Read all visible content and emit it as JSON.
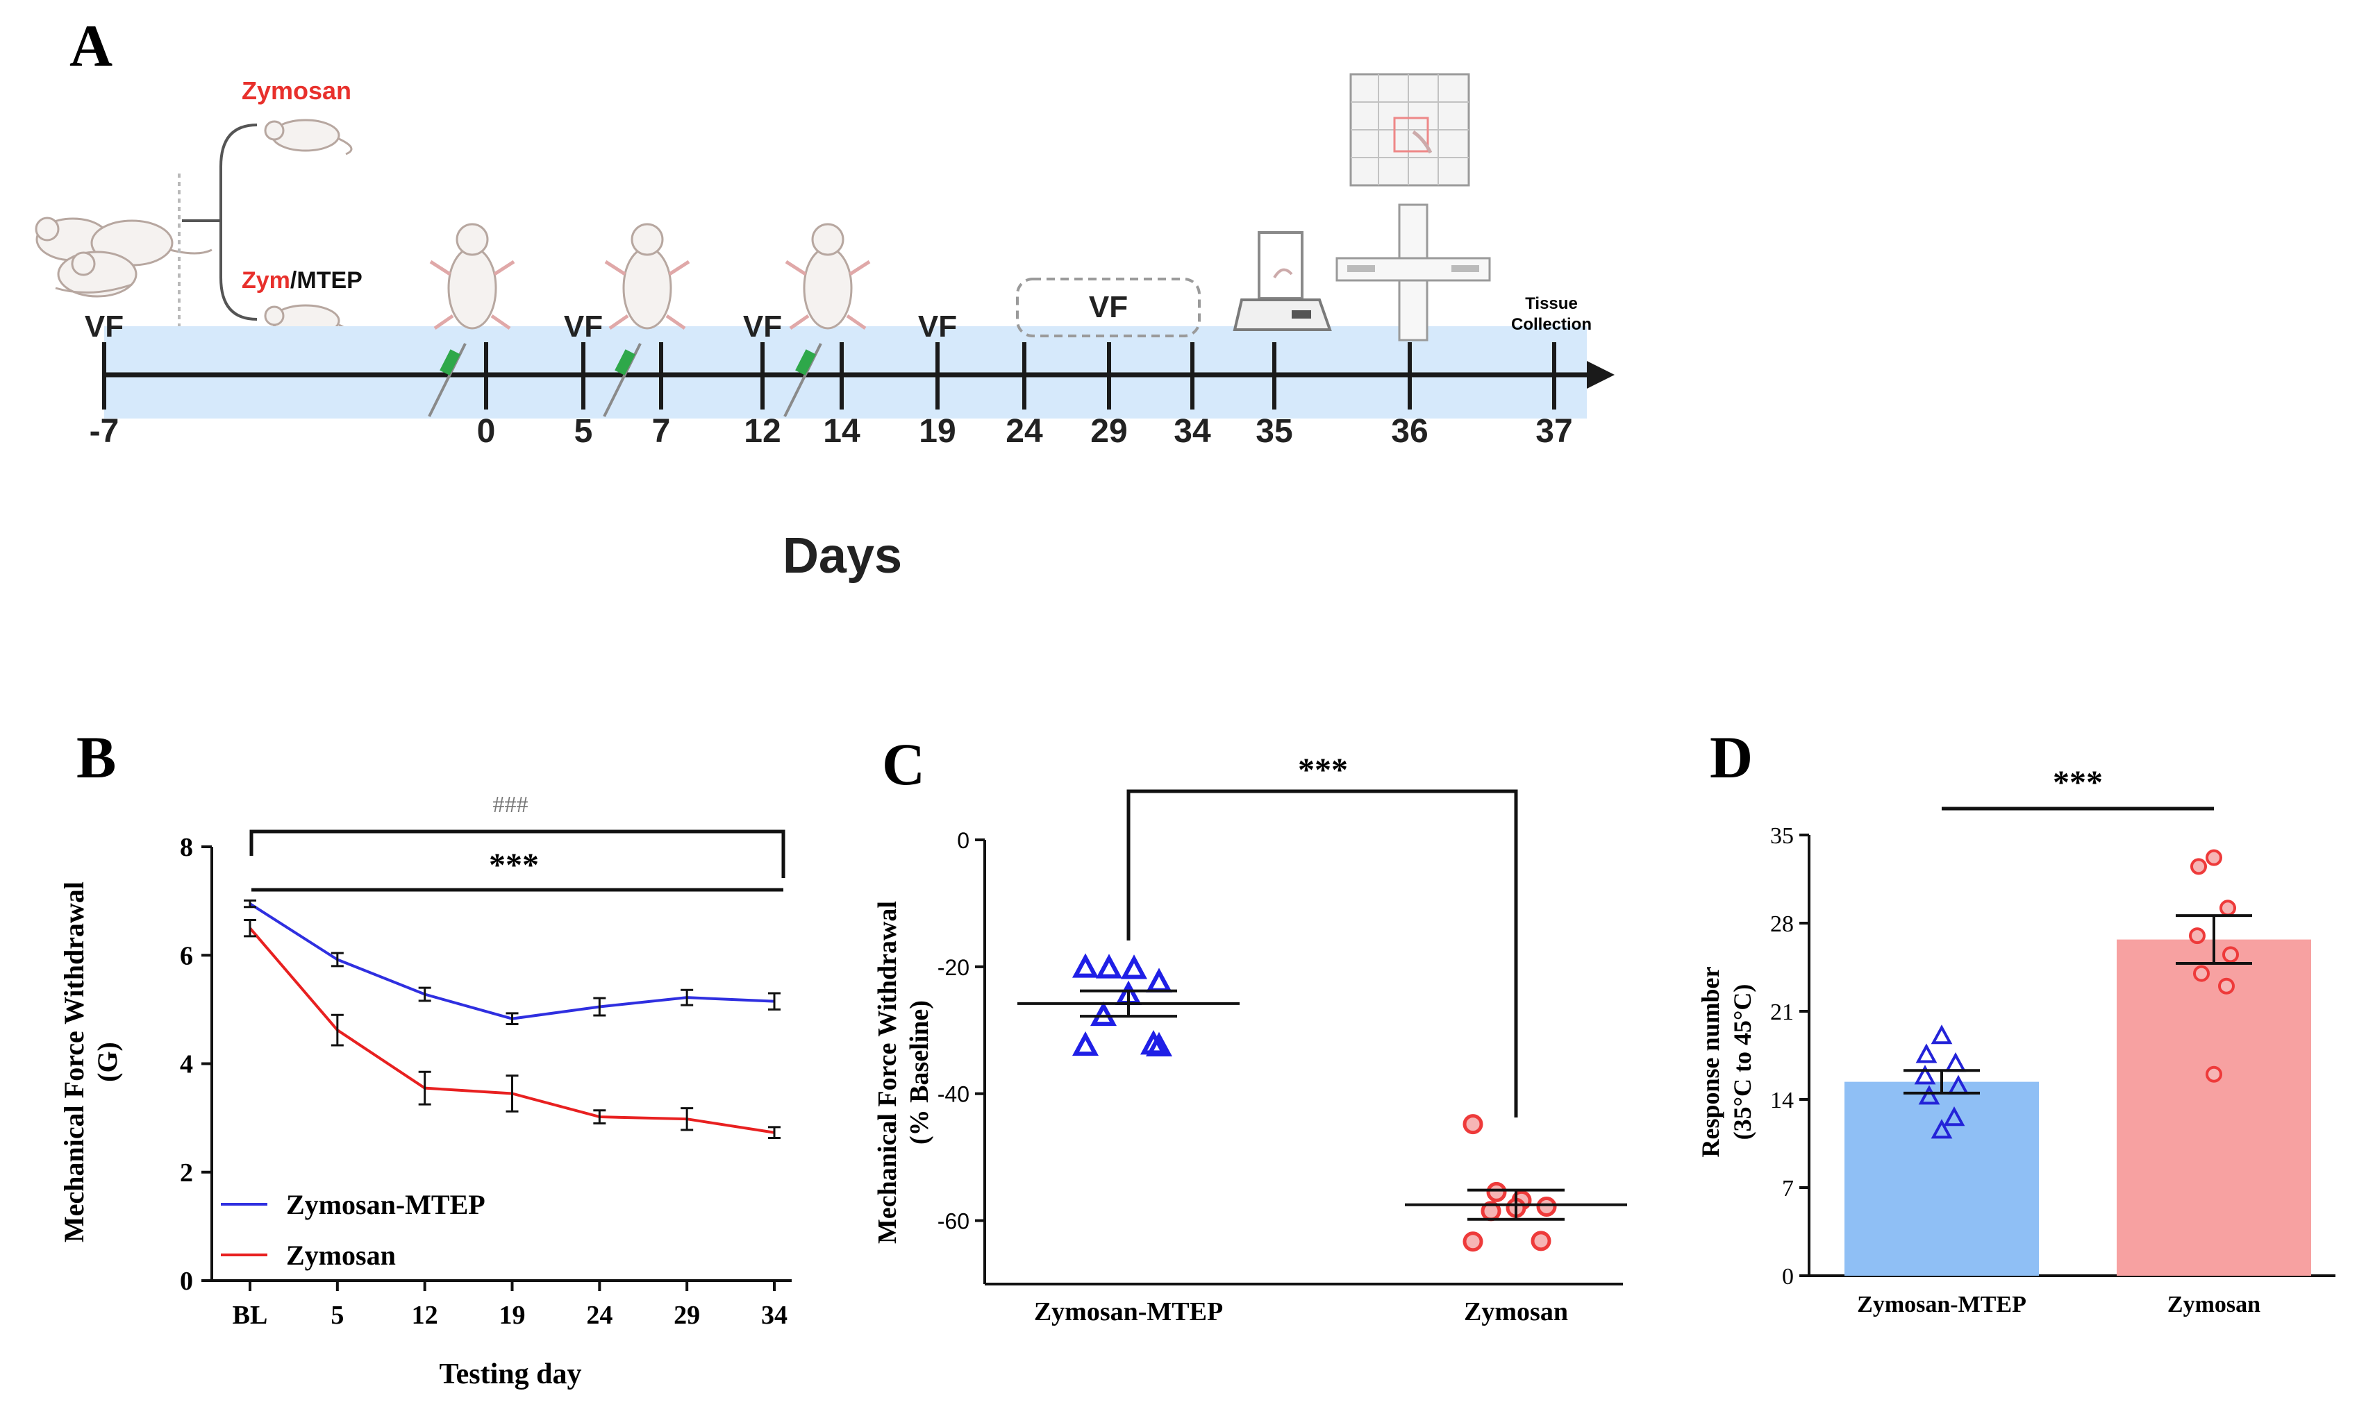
{
  "panel_a": {
    "letter": "A",
    "group1_label": "Zymosan",
    "group2_prefix": "Zym",
    "group2_suffix": "/MTEP",
    "axis_label": "Days",
    "tissue_label_line1": "Tissue",
    "tissue_label_line2": "Collection",
    "vf_label": "VF",
    "days": [
      -7,
      0,
      5,
      7,
      12,
      14,
      19,
      24,
      29,
      34,
      35,
      36,
      37
    ],
    "vf_days": [
      -7,
      5,
      12,
      19
    ],
    "vf_window": [
      24,
      34
    ],
    "injection_days": [
      0,
      7,
      14
    ],
    "colors": {
      "timeline_band": "#d6e9fb",
      "red": "#e8302c"
    }
  },
  "chart_data": [
    {
      "id": "B",
      "type": "line",
      "letter": "B",
      "categories": [
        "BL",
        "5",
        "12",
        "19",
        "24",
        "29",
        "34"
      ],
      "series": [
        {
          "name": "Zymosan-MTEP",
          "color": "#2f2fe0",
          "values": [
            6.95,
            5.92,
            5.28,
            4.83,
            5.05,
            5.22,
            5.15
          ],
          "errors": [
            0.06,
            0.12,
            0.12,
            0.1,
            0.16,
            0.14,
            0.15
          ]
        },
        {
          "name": "Zymosan",
          "color": "#e82020",
          "values": [
            6.5,
            4.62,
            3.55,
            3.45,
            3.02,
            2.98,
            2.73
          ],
          "errors": [
            0.15,
            0.28,
            0.3,
            0.33,
            0.12,
            0.2,
            0.1
          ]
        }
      ],
      "xlabel": "Testing day",
      "ylabel_line1": "Mechanical Force Withdrawal",
      "ylabel_line2": "(G)",
      "ylim": [
        0,
        8
      ],
      "yticks": [
        0,
        2,
        4,
        6,
        8
      ],
      "annotation_hash": "###",
      "annotation_stars": "***"
    },
    {
      "id": "C",
      "type": "scatter",
      "letter": "C",
      "categories": [
        "Zymosan-MTEP",
        "Zymosan"
      ],
      "groups": [
        {
          "name": "Zymosan-MTEP",
          "color": "#1f1fe6",
          "marker": "triangle",
          "mean": -25.8,
          "sem": 2.0,
          "points": [
            -20.2,
            -20.3,
            -20.4,
            -22.5,
            -24.5,
            -27.8,
            -32.3,
            -32.5,
            -32.6
          ]
        },
        {
          "name": "Zymosan",
          "color": "#ee3a3a",
          "marker": "circle",
          "mean": -57.5,
          "sem": 2.3,
          "points": [
            -44.8,
            -55.5,
            -56.8,
            -57.8,
            -58.0,
            -58.5,
            -63.2,
            -63.3
          ]
        }
      ],
      "ylabel_line1": "Mechanical Force Withdrawal",
      "ylabel_line2": "(% Baseline)",
      "ylim": [
        -70,
        0
      ],
      "yticks": [
        0,
        -20,
        -40,
        -60
      ],
      "annotation_stars": "***"
    },
    {
      "id": "D",
      "type": "bar",
      "letter": "D",
      "categories": [
        "Zymosan-MTEP",
        "Zymosan"
      ],
      "groups": [
        {
          "name": "Zymosan-MTEP",
          "bar_color": "#8fbff5",
          "point_color": "#2323d8",
          "marker": "triangle",
          "mean": 15.4,
          "sem": 0.9,
          "points": [
            19.0,
            17.5,
            16.8,
            15.8,
            15.0,
            14.2,
            12.5,
            11.5
          ]
        },
        {
          "name": "Zymosan",
          "bar_color": "#f7a1a1",
          "point_color": "#ee3a3a",
          "marker": "circle",
          "mean": 26.7,
          "sem": 1.9,
          "points": [
            33.2,
            32.5,
            29.2,
            27.0,
            25.5,
            24.0,
            23.0,
            16.0
          ]
        }
      ],
      "ylabel_line1": "Response number",
      "ylabel_line2": "(35°C to 45°C)",
      "ylim": [
        0,
        35
      ],
      "yticks": [
        0,
        7,
        14,
        21,
        28,
        35
      ],
      "annotation_stars": "***"
    }
  ]
}
